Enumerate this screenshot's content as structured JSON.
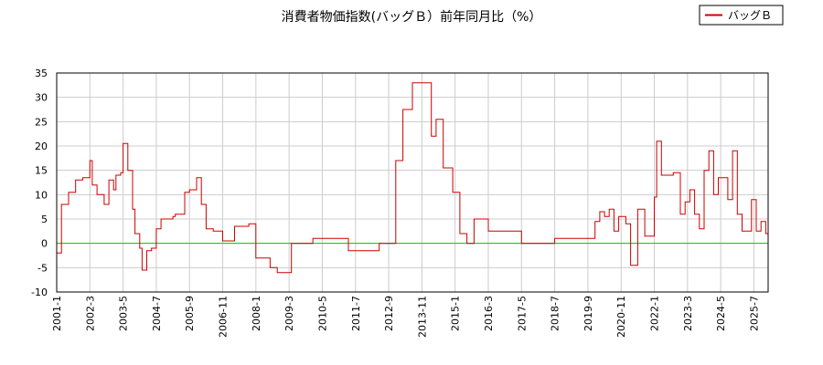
{
  "chart_data": {
    "type": "line",
    "title": "消費者物価指数(バッグＢ）前年同月比（%）",
    "xlabel": "",
    "ylabel": "",
    "ylim": [
      -10,
      35
    ],
    "yticks": [
      "35",
      "30",
      "25",
      "20",
      "15",
      "10",
      "5",
      "0",
      "-5",
      "-10"
    ],
    "yticks_values": [
      35,
      30,
      25,
      20,
      15,
      10,
      5,
      0,
      -5,
      -10
    ],
    "xticks": [
      "2001-1",
      "2002-3",
      "2003-5",
      "2004-7",
      "2005-9",
      "2006-11",
      "2008-1",
      "2009-3",
      "2010-5",
      "2011-7",
      "2012-9",
      "2013-11",
      "2015-1",
      "2016-3",
      "2017-5",
      "2018-7",
      "2019-9",
      "2020-11",
      "2022-1",
      "2023-3",
      "2024-5",
      "2025-7"
    ],
    "xlim": [
      "2001-1",
      "2026-1"
    ],
    "grid": true,
    "legend": "top-right",
    "colors": {
      "series": "#cc0000",
      "zero_line": "#00cc00",
      "grid": "#cccccc",
      "axis": "#000000"
    },
    "series": [
      {
        "name": "バッグＢ",
        "x": [
          "2001-1",
          "2001-3",
          "2001-6",
          "2001-9",
          "2001-12",
          "2002-3",
          "2002-4",
          "2002-6",
          "2002-9",
          "2002-11",
          "2003-1",
          "2003-2",
          "2003-4",
          "2003-5",
          "2003-7",
          "2003-9",
          "2003-10",
          "2003-12",
          "2004-1",
          "2004-3",
          "2004-5",
          "2004-7",
          "2004-9",
          "2004-11",
          "2005-2",
          "2005-3",
          "2005-5",
          "2005-7",
          "2005-9",
          "2005-10",
          "2005-12",
          "2006-2",
          "2006-4",
          "2006-7",
          "2006-10",
          "2006-11",
          "2006-12",
          "2007-2",
          "2007-4",
          "2007-7",
          "2007-10",
          "2008-1",
          "2008-4",
          "2008-7",
          "2008-10",
          "2009-1",
          "2009-4",
          "2009-7",
          "2009-10",
          "2010-1",
          "2010-5",
          "2010-9",
          "2011-1",
          "2011-4",
          "2011-7",
          "2011-10",
          "2012-1",
          "2012-5",
          "2012-9",
          "2012-12",
          "2013-3",
          "2013-7",
          "2013-11",
          "2014-3",
          "2014-5",
          "2014-8",
          "2014-12",
          "2015-3",
          "2015-6",
          "2015-9",
          "2015-12",
          "2016-3",
          "2016-9",
          "2017-5",
          "2018-3",
          "2018-7",
          "2019-5",
          "2019-9",
          "2019-12",
          "2020-2",
          "2020-4",
          "2020-6",
          "2020-8",
          "2020-10",
          "2020-11",
          "2021-1",
          "2021-3",
          "2021-6",
          "2021-9",
          "2021-12",
          "2022-1",
          "2022-2",
          "2022-4",
          "2022-7",
          "2022-9",
          "2022-12",
          "2023-2",
          "2023-4",
          "2023-6",
          "2023-8",
          "2023-10",
          "2023-12",
          "2024-2",
          "2024-4",
          "2024-6",
          "2024-8",
          "2024-10",
          "2024-12",
          "2025-2",
          "2025-4",
          "2025-6",
          "2025-8",
          "2025-10",
          "2025-12"
        ],
        "values": [
          -2,
          8,
          10.5,
          13,
          13.5,
          17,
          12,
          10,
          8,
          13,
          11,
          14,
          14.5,
          20.5,
          15,
          7,
          2,
          -1,
          -5.5,
          -1.5,
          -1,
          3,
          5,
          5,
          5.5,
          6,
          6,
          10.5,
          11,
          11,
          13.5,
          8,
          3,
          2.5,
          2.5,
          0.5,
          0.5,
          0.5,
          3.5,
          3.5,
          4,
          -3,
          -3,
          -5,
          -6,
          -6,
          0,
          0,
          0,
          1,
          1,
          1,
          1,
          -1.5,
          -1.5,
          -1.5,
          -1.5,
          0,
          0,
          17,
          27.5,
          33,
          33,
          22,
          25.5,
          15.5,
          10.5,
          2,
          0,
          5,
          5,
          2.5,
          2.5,
          0,
          0,
          1,
          1,
          1,
          4.5,
          6.5,
          5.5,
          7,
          2.5,
          5.5,
          5.5,
          4,
          -4.5,
          7,
          1.5,
          1.5,
          9.5,
          21,
          14,
          14,
          14.5,
          6,
          8.5,
          11,
          6,
          3,
          15,
          19,
          10,
          13.5,
          13.5,
          9,
          19,
          6,
          2.5,
          2.5,
          9,
          2.5,
          4.5,
          2
        ]
      }
    ]
  }
}
